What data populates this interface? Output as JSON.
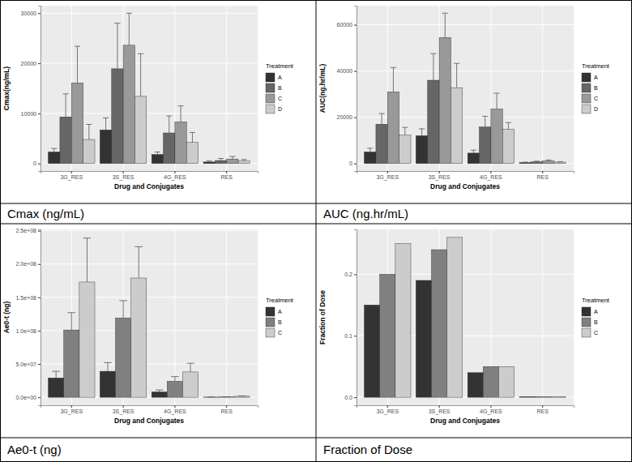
{
  "chart_data": [
    {
      "type": "bar",
      "title": "Cmax (ng/mL)",
      "x_label": "Drug and Conjugates",
      "y_label": "Cmax(ng/mL)",
      "legend_title": "Treatment",
      "legend": "right",
      "grid": true,
      "categories": [
        "3G_RES",
        "3S_RES",
        "4G_RES",
        "RES"
      ],
      "ylim": [
        -1500,
        31500
      ],
      "yticks": [
        0,
        10000,
        20000,
        30000
      ],
      "series": [
        {
          "name": "A",
          "color": "#333333",
          "values": [
            2300,
            6700,
            1800,
            300
          ],
          "errors": [
            700,
            2400,
            500,
            200
          ]
        },
        {
          "name": "B",
          "color": "#666666",
          "values": [
            9300,
            18900,
            6100,
            600
          ],
          "errors": [
            4600,
            9100,
            3400,
            400
          ]
        },
        {
          "name": "C",
          "color": "#999999",
          "values": [
            16100,
            23600,
            8300,
            900
          ],
          "errors": [
            7300,
            6400,
            3200,
            500
          ]
        },
        {
          "name": "D",
          "color": "#CCCCCC",
          "values": [
            4800,
            13400,
            4200,
            500
          ],
          "errors": [
            3000,
            8500,
            2000,
            300
          ]
        }
      ]
    },
    {
      "type": "bar",
      "title": "AUC (ng.hr/mL)",
      "x_label": "Drug and Conjugates",
      "y_label": "AUC(ng.hr/mL)",
      "legend_title": "Treatment",
      "legend": "right",
      "grid": true,
      "categories": [
        "3G_RES",
        "3S_RES",
        "4G_RES",
        "RES"
      ],
      "ylim": [
        -3250,
        68250
      ],
      "yticks": [
        0,
        20000,
        40000,
        60000
      ],
      "series": [
        {
          "name": "A",
          "color": "#333333",
          "values": [
            5000,
            12000,
            4500,
            400
          ],
          "errors": [
            1600,
            3000,
            1300,
            200
          ]
        },
        {
          "name": "B",
          "color": "#666666",
          "values": [
            17000,
            36000,
            15800,
            700
          ],
          "errors": [
            4600,
            11500,
            4600,
            300
          ]
        },
        {
          "name": "C",
          "color": "#999999",
          "values": [
            31000,
            54500,
            23600,
            1100
          ],
          "errors": [
            10500,
            10500,
            6800,
            400
          ]
        },
        {
          "name": "D",
          "color": "#CCCCCC",
          "values": [
            12300,
            32800,
            14800,
            600
          ],
          "errors": [
            3300,
            10500,
            2900,
            200
          ]
        }
      ]
    },
    {
      "type": "bar",
      "title": "Ae0-t (ng)",
      "x_label": "Drug and Conjugates",
      "y_label": "Ae0-t (ng)",
      "legend_title": "Treatment",
      "legend": "right",
      "grid": true,
      "categories": [
        "3G_RES",
        "3S_RES",
        "4G_RES",
        "RES"
      ],
      "ylim": [
        -12000000,
        252000000
      ],
      "yticks": [
        {
          "value": 0,
          "label": "0.0e+00"
        },
        {
          "value": 50000000,
          "label": "5.0e+07"
        },
        {
          "value": 100000000,
          "label": "1.0e+08"
        },
        {
          "value": 150000000,
          "label": "1.5e+08"
        },
        {
          "value": 200000000,
          "label": "2.0e+08"
        },
        {
          "value": 250000000,
          "label": "2.5e+08"
        }
      ],
      "series": [
        {
          "name": "A",
          "color": "#333333",
          "values": [
            29000000,
            39000000,
            8000000,
            300000
          ],
          "errors": [
            10000000,
            13000000,
            3000000,
            200000
          ]
        },
        {
          "name": "B",
          "color": "#808080",
          "values": [
            101000000,
            119000000,
            24000000,
            500000
          ],
          "errors": [
            26000000,
            26000000,
            7000000,
            300000
          ]
        },
        {
          "name": "C",
          "color": "#CCCCCC",
          "values": [
            173000000,
            179000000,
            38000000,
            1500000
          ],
          "errors": [
            66000000,
            47000000,
            13000000,
            500000
          ]
        }
      ]
    },
    {
      "type": "bar",
      "title": "Fraction of Dose",
      "x_label": "Drug and Conjugates",
      "y_label": "Fraction of Dose",
      "legend_title": "Treatment",
      "legend": "right",
      "grid": true,
      "categories": [
        "3G_RES",
        "3S_RES",
        "4G_RES",
        "RES"
      ],
      "ylim": [
        -0.013,
        0.273
      ],
      "yticks": [
        {
          "value": 0,
          "label": "0.0"
        },
        0.1,
        0.2
      ],
      "series": [
        {
          "name": "A",
          "color": "#333333",
          "values": [
            0.15,
            0.19,
            0.04,
            0.001
          ]
        },
        {
          "name": "B",
          "color": "#808080",
          "values": [
            0.2,
            0.24,
            0.05,
            0.001
          ]
        },
        {
          "name": "C",
          "color": "#CCCCCC",
          "values": [
            0.25,
            0.26,
            0.05,
            0.001
          ]
        }
      ]
    }
  ]
}
